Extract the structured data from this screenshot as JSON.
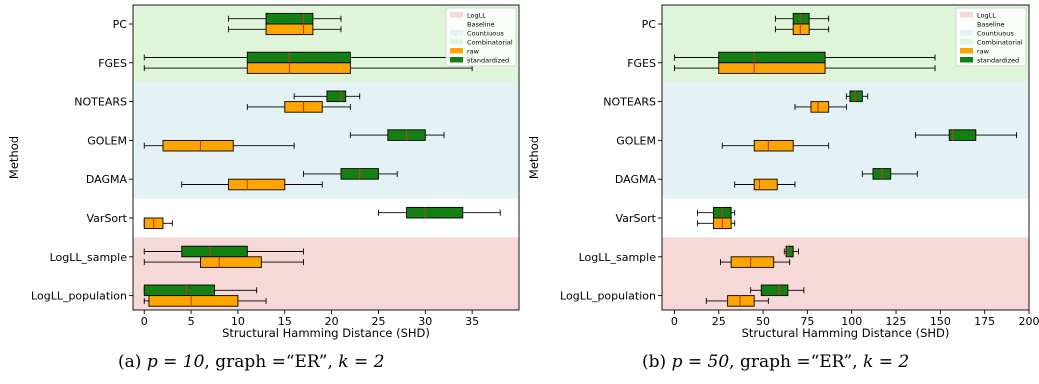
{
  "chart_data": [
    {
      "type": "boxplot",
      "orientation": "horizontal",
      "caption": {
        "label": "(a) ",
        "p": "p = 10",
        "graph": ", graph =“ER”, ",
        "k": "k = 2"
      },
      "xlabel": "Structural Hamming Distance (SHD)",
      "ylabel": "Method",
      "xlim": [
        -1.2,
        40
      ],
      "xticks": [
        0,
        5,
        10,
        15,
        20,
        25,
        30,
        35
      ],
      "methods": [
        "PC",
        "FGES",
        "NOTEARS",
        "GOLEM",
        "DAGMA",
        "VarSort",
        "LogLL_sample",
        "LogLL_population"
      ],
      "bands": [
        {
          "group": "Combinatorial",
          "from": "PC",
          "to": "FGES",
          "color": "#dff5d9"
        },
        {
          "group": "Countiuous",
          "from": "NOTEARS",
          "to": "DAGMA",
          "color": "#e4f2f6"
        },
        {
          "group": "Baseline",
          "from": "VarSort",
          "to": "VarSort",
          "color": "#ffffff"
        },
        {
          "group": "LogLL",
          "from": "LogLL_sample",
          "to": "LogLL_population",
          "color": "#f7d8d8"
        }
      ],
      "series": [
        {
          "name": "standardized",
          "color": "#148014",
          "offset": -1,
          "boxes": [
            {
              "method": "PC",
              "min": 9,
              "q1": 13,
              "median": 17,
              "q3": 18,
              "max": 21
            },
            {
              "method": "FGES",
              "min": 0,
              "q1": 11,
              "median": 15.5,
              "q3": 22,
              "max": 35
            },
            {
              "method": "NOTEARS",
              "min": 16,
              "q1": 19.5,
              "median": 21,
              "q3": 21.5,
              "max": 23
            },
            {
              "method": "GOLEM",
              "min": 22,
              "q1": 26,
              "median": 28,
              "q3": 30,
              "max": 32
            },
            {
              "method": "DAGMA",
              "min": 17,
              "q1": 21,
              "median": 23,
              "q3": 25,
              "max": 27
            },
            {
              "method": "VarSort",
              "min": 25,
              "q1": 28,
              "median": 30,
              "q3": 34,
              "max": 38
            },
            {
              "method": "LogLL_sample",
              "min": 0,
              "q1": 4,
              "median": 7,
              "q3": 11,
              "max": 17
            },
            {
              "method": "LogLL_population",
              "min": 0,
              "q1": 0,
              "median": 4.5,
              "q3": 7.5,
              "max": 12
            }
          ]
        },
        {
          "name": "raw",
          "color": "#ffa500",
          "offset": 1,
          "boxes": [
            {
              "method": "PC",
              "min": 9,
              "q1": 13,
              "median": 17,
              "q3": 18,
              "max": 21
            },
            {
              "method": "FGES",
              "min": 0,
              "q1": 11,
              "median": 15.5,
              "q3": 22,
              "max": 35
            },
            {
              "method": "NOTEARS",
              "min": 11,
              "q1": 15,
              "median": 17,
              "q3": 19,
              "max": 22
            },
            {
              "method": "GOLEM",
              "min": 0,
              "q1": 2,
              "median": 6,
              "q3": 9.5,
              "max": 16
            },
            {
              "method": "DAGMA",
              "min": 4,
              "q1": 9,
              "median": 11,
              "q3": 15,
              "max": 19
            },
            {
              "method": "VarSort",
              "min": 0,
              "q1": 0,
              "median": 1,
              "q3": 2,
              "max": 3
            },
            {
              "method": "LogLL_sample",
              "min": 0,
              "q1": 6,
              "median": 8,
              "q3": 12.5,
              "max": 17
            },
            {
              "method": "LogLL_population",
              "min": 0,
              "q1": 0.5,
              "median": 5,
              "q3": 10,
              "max": 13
            }
          ]
        }
      ],
      "legend": {
        "position": "top-right",
        "entries": [
          {
            "label": "LogLL",
            "color": "#f7d8d8"
          },
          {
            "label": "Baseline",
            "color": "#ffffff"
          },
          {
            "label": "Countiuous",
            "color": "#e4f2f6"
          },
          {
            "label": "Combinatorial",
            "color": "#dff5d9"
          },
          {
            "label": "raw",
            "color": "#ffa500"
          },
          {
            "label": "standardized",
            "color": "#148014"
          }
        ]
      }
    },
    {
      "type": "boxplot",
      "orientation": "horizontal",
      "caption": {
        "label": "(b) ",
        "p": "p = 50",
        "graph": ", graph =“ER”, ",
        "k": "k = 2"
      },
      "xlabel": "Structural Hamming Distance (SHD)",
      "ylabel": "Method",
      "xlim": [
        -7,
        200
      ],
      "xticks": [
        0,
        25,
        50,
        75,
        100,
        125,
        150,
        175,
        200
      ],
      "methods": [
        "PC",
        "FGES",
        "NOTEARS",
        "GOLEM",
        "DAGMA",
        "VarSort",
        "LogLL_sample",
        "LogLL_population"
      ],
      "bands": [
        {
          "group": "Combinatorial",
          "from": "PC",
          "to": "FGES",
          "color": "#dff5d9"
        },
        {
          "group": "Countiuous",
          "from": "NOTEARS",
          "to": "DAGMA",
          "color": "#e4f2f6"
        },
        {
          "group": "Baseline",
          "from": "VarSort",
          "to": "VarSort",
          "color": "#ffffff"
        },
        {
          "group": "LogLL",
          "from": "LogLL_sample",
          "to": "LogLL_population",
          "color": "#f7d8d8"
        }
      ],
      "series": [
        {
          "name": "standardized",
          "color": "#148014",
          "offset": -1,
          "boxes": [
            {
              "method": "PC",
              "min": 57,
              "q1": 67,
              "median": 71,
              "q3": 76,
              "max": 87
            },
            {
              "method": "FGES",
              "min": 0,
              "q1": 25,
              "median": 45,
              "q3": 85,
              "max": 147
            },
            {
              "method": "NOTEARS",
              "min": 97,
              "q1": 99,
              "median": 102,
              "q3": 106,
              "max": 109
            },
            {
              "method": "GOLEM",
              "min": 136,
              "q1": 155,
              "median": 157,
              "q3": 170,
              "max": 193
            },
            {
              "method": "DAGMA",
              "min": 106,
              "q1": 112,
              "median": 117,
              "q3": 122,
              "max": 137
            },
            {
              "method": "VarSort",
              "min": 13,
              "q1": 22,
              "median": 27,
              "q3": 32,
              "max": 34
            },
            {
              "method": "LogLL_sample",
              "min": 62,
              "q1": 63,
              "median": 64,
              "q3": 67,
              "max": 70
            },
            {
              "method": "LogLL_population",
              "min": 43,
              "q1": 49,
              "median": 59,
              "q3": 64,
              "max": 73
            }
          ]
        },
        {
          "name": "raw",
          "color": "#ffa500",
          "offset": 1,
          "boxes": [
            {
              "method": "PC",
              "min": 57,
              "q1": 67,
              "median": 71,
              "q3": 76,
              "max": 87
            },
            {
              "method": "FGES",
              "min": 0,
              "q1": 25,
              "median": 45,
              "q3": 85,
              "max": 147
            },
            {
              "method": "NOTEARS",
              "min": 68,
              "q1": 77,
              "median": 81,
              "q3": 87,
              "max": 97
            },
            {
              "method": "GOLEM",
              "min": 27,
              "q1": 45,
              "median": 53,
              "q3": 67,
              "max": 87
            },
            {
              "method": "DAGMA",
              "min": 34,
              "q1": 45,
              "median": 48,
              "q3": 58,
              "max": 68
            },
            {
              "method": "VarSort",
              "min": 13,
              "q1": 22,
              "median": 27,
              "q3": 32,
              "max": 34
            },
            {
              "method": "LogLL_sample",
              "min": 26,
              "q1": 32,
              "median": 43,
              "q3": 56,
              "max": 65
            },
            {
              "method": "LogLL_population",
              "min": 18,
              "q1": 30,
              "median": 37,
              "q3": 45,
              "max": 53
            }
          ]
        }
      ],
      "legend": {
        "position": "top-right",
        "entries": [
          {
            "label": "LogLL",
            "color": "#f7d8d8"
          },
          {
            "label": "Baseline",
            "color": "#ffffff"
          },
          {
            "label": "Countiuous",
            "color": "#e4f2f6"
          },
          {
            "label": "Combinatorial",
            "color": "#dff5d9"
          },
          {
            "label": "raw",
            "color": "#ffa500"
          },
          {
            "label": "standardized",
            "color": "#148014"
          }
        ]
      }
    }
  ]
}
